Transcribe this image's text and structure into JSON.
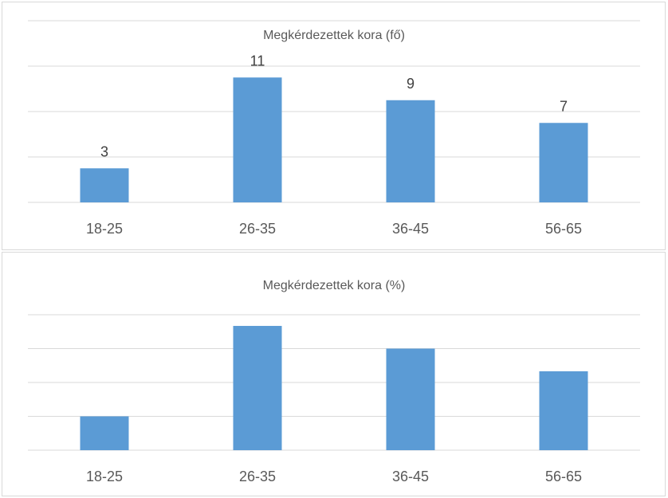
{
  "chart_data": [
    {
      "type": "bar",
      "title": "Megkérdezettek kora (fő)",
      "categories": [
        "18-25",
        "26-35",
        "36-45",
        "56-65"
      ],
      "values": [
        3,
        11,
        9,
        7
      ],
      "data_labels": [
        "3",
        "11",
        "9",
        "7"
      ],
      "ylim": [
        0,
        16
      ],
      "grid": true,
      "legend": "none",
      "colors": {
        "bar": "#5b9bd5",
        "grid": "#d9d9d9",
        "text": "#595959"
      }
    },
    {
      "type": "bar",
      "title": "Megkérdezettek kora (%)",
      "categories": [
        "18-25",
        "26-35",
        "36-45",
        "56-65"
      ],
      "values": [
        10,
        36.7,
        30,
        23.3
      ],
      "ylim": [
        0,
        40
      ],
      "grid": true,
      "legend": "none",
      "colors": {
        "bar": "#5b9bd5",
        "grid": "#d9d9d9",
        "text": "#595959"
      }
    }
  ]
}
